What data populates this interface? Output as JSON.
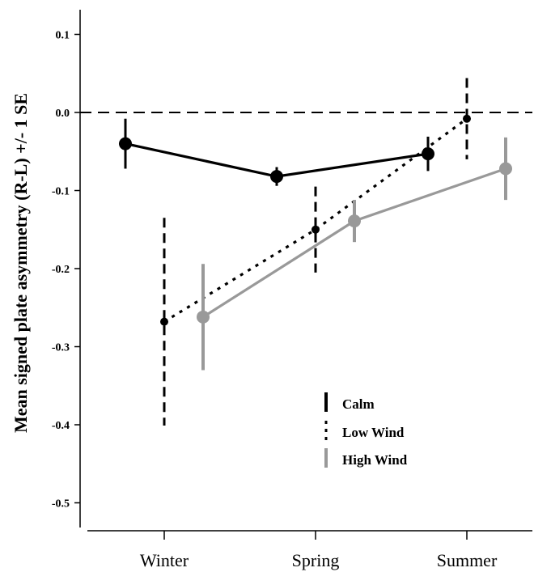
{
  "chart_data": {
    "type": "line",
    "title": "",
    "xlabel": "",
    "ylabel": "Mean signed plate asymmetry (R-L) +/- 1 SE",
    "categories": [
      "Winter",
      "Spring",
      "Summer"
    ],
    "ylim": [
      -0.54,
      0.14
    ],
    "yticks": [
      0.1,
      0.0,
      -0.1,
      -0.2,
      -0.3,
      -0.4,
      -0.5
    ],
    "ytick_labels": [
      "0.1",
      "0.0",
      "-0.1",
      "-0.2",
      "-0.3",
      "-0.4",
      "-0.5"
    ],
    "reference_line": 0.0,
    "grid": false,
    "legend_position": "bottom-right",
    "series": [
      {
        "name": "Calm",
        "color": "#000000",
        "line_style": "solid",
        "error_style": "solid",
        "values": [
          -0.04,
          -0.082,
          -0.053
        ],
        "error": [
          0.032,
          0.012,
          0.022
        ]
      },
      {
        "name": "Low Wind",
        "color": "#000000",
        "line_style": "dotted",
        "error_style": "dashed",
        "values": [
          -0.268,
          -0.15,
          -0.008
        ],
        "error": [
          0.133,
          0.055,
          0.052
        ]
      },
      {
        "name": "High Wind",
        "color": "#999999",
        "line_style": "solid",
        "error_style": "solid",
        "values": [
          -0.262,
          -0.139,
          -0.072
        ],
        "error": [
          0.068,
          0.027,
          0.04
        ]
      }
    ]
  }
}
